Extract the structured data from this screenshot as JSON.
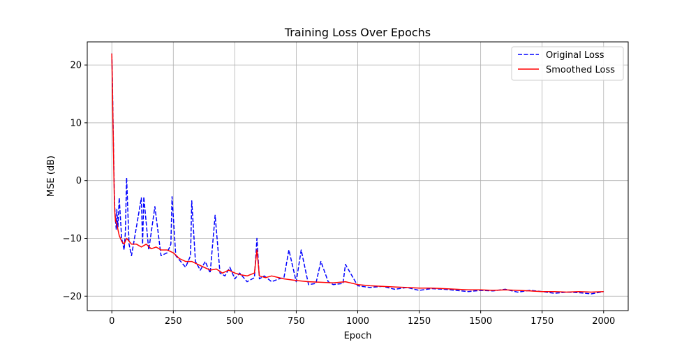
{
  "chart_data": {
    "type": "line",
    "title": "Training Loss Over Epochs",
    "xlabel": "Epoch",
    "ylabel": "MSE (dB)",
    "xlim": [
      -100,
      2100
    ],
    "ylim": [
      -22.5,
      24
    ],
    "xticks": [
      0,
      250,
      500,
      750,
      1000,
      1250,
      1500,
      1750,
      2000
    ],
    "yticks": [
      -20,
      -10,
      0,
      10,
      20
    ],
    "grid": true,
    "legend_position": "top-right",
    "series": [
      {
        "name": "Original Loss",
        "color": "#0000ff",
        "style": "dashed",
        "x": [
          0,
          2,
          5,
          8,
          10,
          12,
          15,
          18,
          20,
          25,
          30,
          40,
          50,
          55,
          60,
          70,
          80,
          100,
          120,
          125,
          130,
          150,
          175,
          200,
          225,
          240,
          245,
          260,
          280,
          300,
          320,
          325,
          340,
          360,
          380,
          400,
          420,
          440,
          460,
          480,
          500,
          520,
          550,
          580,
          590,
          600,
          620,
          650,
          680,
          700,
          720,
          750,
          770,
          800,
          830,
          850,
          880,
          900,
          940,
          950,
          1000,
          1050,
          1100,
          1150,
          1200,
          1250,
          1300,
          1350,
          1400,
          1450,
          1500,
          1550,
          1600,
          1650,
          1700,
          1750,
          1800,
          1850,
          1900,
          1950,
          2000
        ],
        "values": [
          22,
          18,
          10,
          3,
          -2,
          -5,
          -7,
          -8.5,
          -5,
          -8,
          -3,
          -10,
          -12,
          -9,
          0.5,
          -11,
          -13,
          -8,
          -3,
          -11,
          -2.8,
          -12,
          -4.5,
          -13,
          -12.5,
          -11,
          -2.8,
          -13,
          -14,
          -15,
          -13,
          -3.5,
          -14,
          -15.5,
          -14,
          -16,
          -6,
          -16,
          -16.5,
          -15,
          -17,
          -16,
          -17.5,
          -16.8,
          -10,
          -17,
          -16.5,
          -17.5,
          -17,
          -16.8,
          -12,
          -17.5,
          -12,
          -18,
          -17.8,
          -14,
          -17.5,
          -18,
          -17.8,
          -14.5,
          -18.2,
          -18.5,
          -18.3,
          -18.8,
          -18.5,
          -19,
          -18.7,
          -18.8,
          -19,
          -19.2,
          -19,
          -19.1,
          -18.8,
          -19.3,
          -19,
          -19.2,
          -19.5,
          -19.3,
          -19.4,
          -19.6,
          -19.2
        ]
      },
      {
        "name": "Smoothed Loss",
        "color": "#ff0000",
        "style": "solid",
        "x": [
          0,
          2,
          5,
          8,
          10,
          12,
          15,
          20,
          25,
          30,
          40,
          50,
          60,
          70,
          80,
          100,
          120,
          140,
          160,
          180,
          200,
          225,
          250,
          275,
          300,
          325,
          350,
          375,
          400,
          425,
          450,
          475,
          500,
          525,
          550,
          580,
          590,
          600,
          625,
          650,
          700,
          750,
          800,
          850,
          900,
          950,
          1000,
          1050,
          1100,
          1150,
          1200,
          1250,
          1300,
          1350,
          1400,
          1450,
          1500,
          1550,
          1600,
          1650,
          1700,
          1750,
          1800,
          1850,
          1900,
          1950,
          2000
        ],
        "values": [
          22,
          17,
          9,
          2,
          -3,
          -5.5,
          -7,
          -7.5,
          -8.5,
          -9.5,
          -10.5,
          -11,
          -10,
          -10.5,
          -11,
          -11,
          -11.5,
          -11,
          -11.8,
          -11.5,
          -12,
          -12,
          -12.5,
          -13.5,
          -14,
          -14,
          -14.5,
          -15,
          -15.5,
          -15.3,
          -16,
          -15.5,
          -16,
          -16.3,
          -16.5,
          -16,
          -12,
          -16.5,
          -16.8,
          -16.5,
          -17,
          -17.3,
          -17.5,
          -17.6,
          -17.7,
          -17.5,
          -18,
          -18.2,
          -18.3,
          -18.4,
          -18.5,
          -18.6,
          -18.6,
          -18.7,
          -18.8,
          -18.9,
          -18.9,
          -19,
          -18.9,
          -19,
          -19.1,
          -19.2,
          -19.2,
          -19.3,
          -19.2,
          -19.3,
          -19.2
        ]
      }
    ]
  }
}
